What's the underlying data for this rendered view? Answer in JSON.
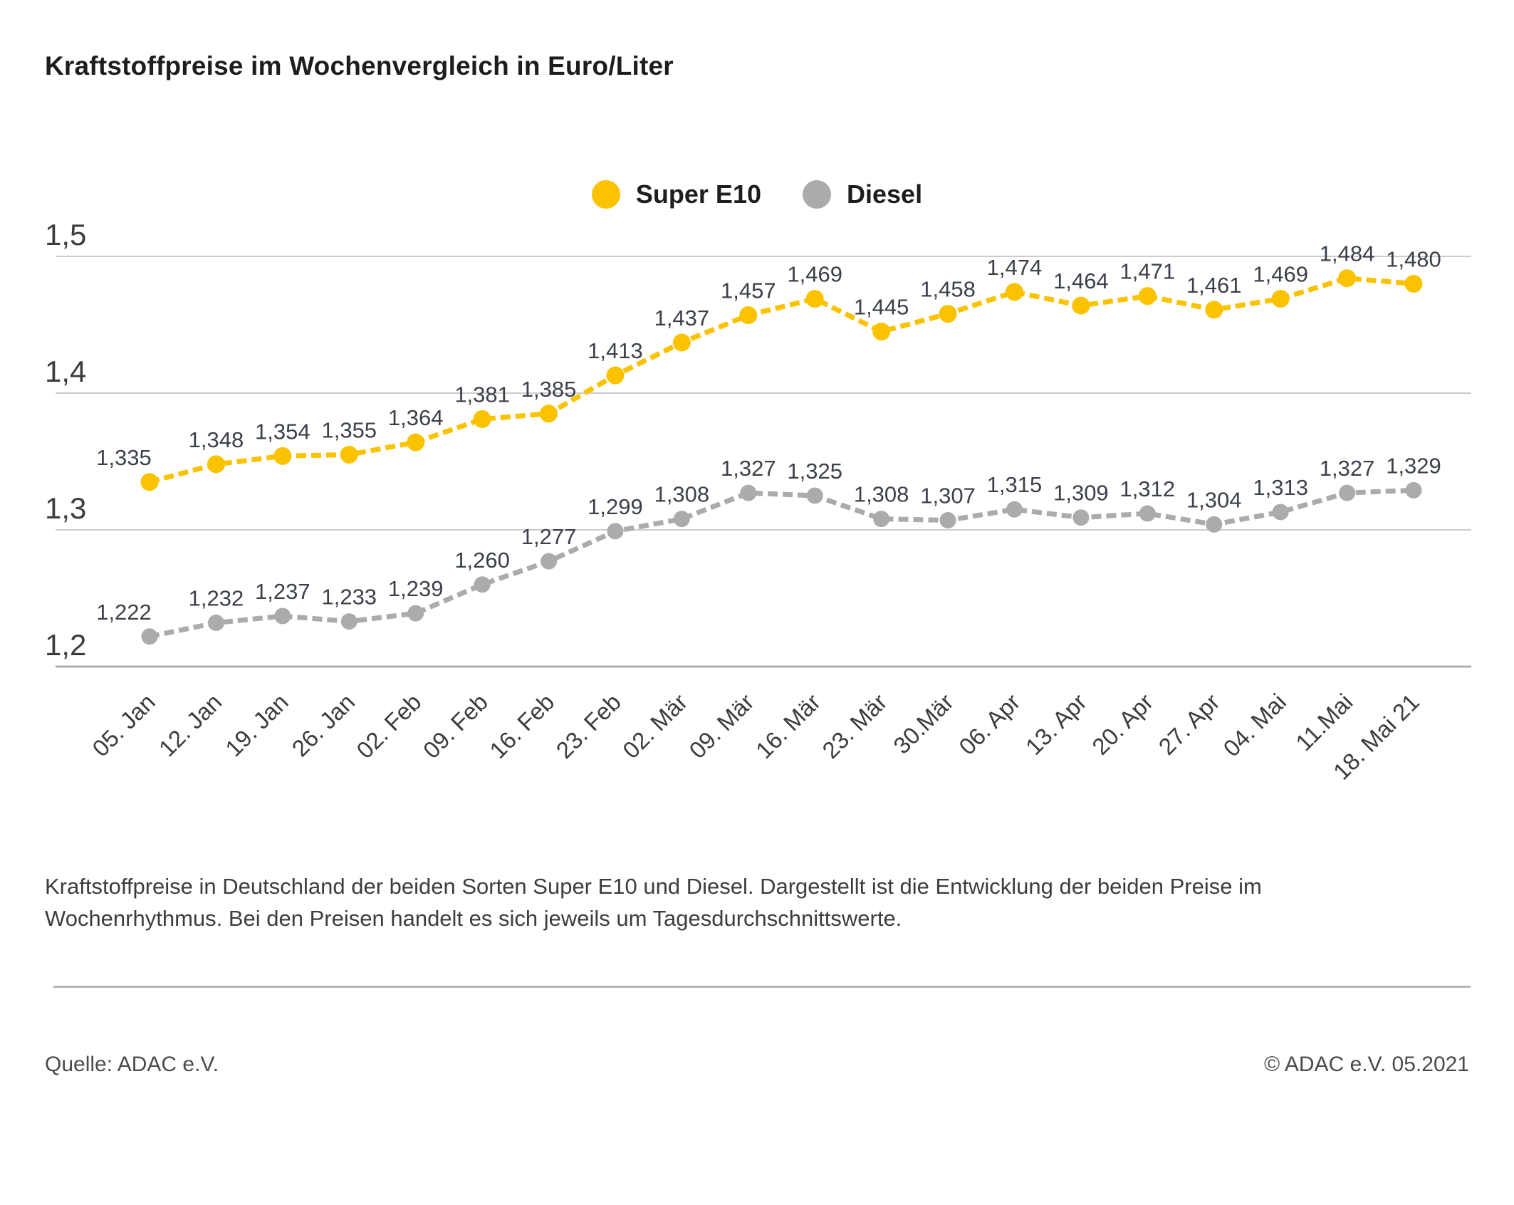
{
  "chart_data": {
    "type": "line",
    "title": "Kraftstoffpreise im Wochenvergleich in Euro/Liter",
    "unit": "Euro/Liter",
    "categories": [
      "05. Jan",
      "12. Jan",
      "19. Jan",
      "26. Jan",
      "02. Feb",
      "09. Feb",
      "16. Feb",
      "23. Feb",
      "02. Mär",
      "09. Mär",
      "16. Mär",
      "23. Mär",
      "30.Mär",
      "06. Apr",
      "13. Apr",
      "20. Apr",
      "27. Apr",
      "04. Mai",
      "11.Mai",
      "18. Mai 21"
    ],
    "series": [
      {
        "name": "Super E10",
        "color": "#FBC200",
        "values": [
          1.335,
          1.348,
          1.354,
          1.355,
          1.364,
          1.381,
          1.385,
          1.413,
          1.437,
          1.457,
          1.469,
          1.445,
          1.458,
          1.474,
          1.464,
          1.471,
          1.461,
          1.469,
          1.484,
          1.48
        ],
        "labels": [
          "1,335",
          "1,348",
          "1,354",
          "1,355",
          "1,364",
          "1,381",
          "1,385",
          "1,413",
          "1,437",
          "1,457",
          "1,469",
          "1,445",
          "1,458",
          "1,474",
          "1,464",
          "1,471",
          "1,461",
          "1,469",
          "1,484",
          "1,480"
        ]
      },
      {
        "name": "Diesel",
        "color": "#ABABAB",
        "values": [
          1.222,
          1.232,
          1.237,
          1.233,
          1.239,
          1.26,
          1.277,
          1.299,
          1.308,
          1.327,
          1.325,
          1.308,
          1.307,
          1.315,
          1.309,
          1.312,
          1.304,
          1.313,
          1.327,
          1.329
        ],
        "labels": [
          "1,222",
          "1,232",
          "1,237",
          "1,233",
          "1,239",
          "1,260",
          "1,277",
          "1,299",
          "1,308",
          "1,327",
          "1,325",
          "1,308",
          "1,307",
          "1,315",
          "1,309",
          "1,312",
          "1,304",
          "1,313",
          "1,327",
          "1,329"
        ]
      }
    ],
    "yticks": [
      {
        "label": "1,5",
        "value": 1.5
      },
      {
        "label": "1,4",
        "value": 1.4
      },
      {
        "label": "1,3",
        "value": 1.3
      },
      {
        "label": "1,2",
        "value": 1.2
      }
    ],
    "ylim": [
      1.2,
      1.5
    ],
    "grid": true,
    "legend_position": "top-center",
    "grid_color": "#cccccc",
    "axis_color": "#adadad",
    "tick_color": "#3c3c3b",
    "data_label_color": "#3b4049"
  },
  "texts": {
    "description": "Kraftstoffpreise in Deutschland der beiden Sorten Super E10 und Diesel. Dargestellt ist die Entwicklung der beiden Preise im Wochenrhythmus. Bei den Preisen handelt es sich jeweils um Tagesdurchschnittswerte."
  },
  "footer": {
    "source": "Quelle: ADAC e.V.",
    "copyright": "© ADAC e.V. 05.2021"
  }
}
